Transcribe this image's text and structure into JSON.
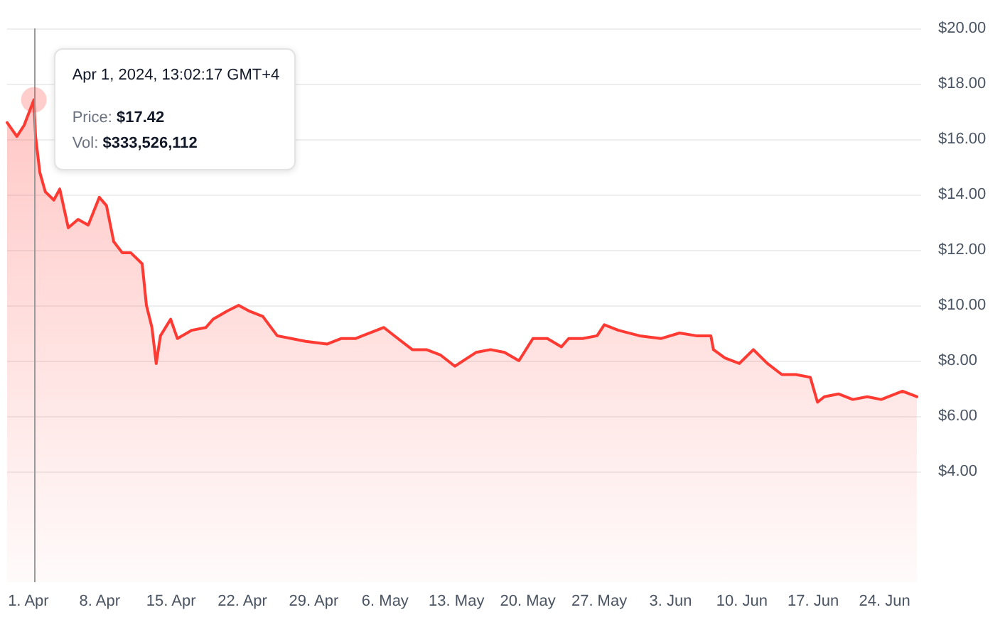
{
  "chart_data": {
    "type": "area",
    "x": [
      "2024-03-29T22:00",
      "2024-03-30T21:00",
      "2024-03-31T14:00",
      "2024-04-01T13:00",
      "2024-04-01T17:00",
      "2024-04-02T03:00",
      "2024-04-02T16:00",
      "2024-04-03T12:00",
      "2024-04-04T02:00",
      "2024-04-04T22:00",
      "2024-04-05T21:00",
      "2024-04-06T21:00",
      "2024-04-07T23:00",
      "2024-04-08T16:00",
      "2024-04-09T09:00",
      "2024-04-10T05:00",
      "2024-04-11T01:00",
      "2024-04-12T04:00",
      "2024-04-12T14:00",
      "2024-04-13T03:00",
      "2024-04-13T13:00",
      "2024-04-13T23:00",
      "2024-04-14T23:00",
      "2024-04-15T15:00",
      "2024-04-17T01:00",
      "2024-04-18T10:00",
      "2024-04-19T03:00",
      "2024-04-20T13:00",
      "2024-04-21T15:00",
      "2024-04-22T15:00",
      "2024-04-24T00:00",
      "2024-04-25T10:00",
      "2024-04-26T19:00",
      "2024-04-28T05:00",
      "2024-04-30T07:00",
      "2024-05-01T16:00",
      "2024-05-03T02:00",
      "2024-05-05T04:00",
      "2024-05-05T21:00",
      "2024-05-07T06:00",
      "2024-05-08T16:00",
      "2024-05-10T01:00",
      "2024-05-11T11:00",
      "2024-05-12T20:00",
      "2024-05-14T22:00",
      "2024-05-16T08:00",
      "2024-05-17T17:00",
      "2024-05-19T03:00",
      "2024-05-20T12:00",
      "2024-05-21T22:00",
      "2024-05-23T07:00",
      "2024-05-24T00:00",
      "2024-05-25T09:00",
      "2024-05-26T19:00",
      "2024-05-27T12:00",
      "2024-05-28T21:00",
      "2024-05-30T23:00",
      "2024-06-02T01:00",
      "2024-06-03T21:00",
      "2024-06-05T13:00",
      "2024-06-06T23:00",
      "2024-06-07T05:00",
      "2024-06-08T08:00",
      "2024-06-09T18:00",
      "2024-06-11T03:00",
      "2024-06-12T12:00",
      "2024-06-13T22:00",
      "2024-06-15T07:00",
      "2024-06-16T17:00",
      "2024-06-17T10:00",
      "2024-06-18T02:00",
      "2024-06-19T12:00",
      "2024-06-20T21:00",
      "2024-06-22T07:00",
      "2024-06-23T16:00",
      "2024-06-25T18:00",
      "2024-06-27T04:00"
    ],
    "series": [
      {
        "color": "#ff3a33",
        "values": [
          16.6,
          16.1,
          16.5,
          17.42,
          16.1,
          14.8,
          14.1,
          13.8,
          14.2,
          12.8,
          13.1,
          12.9,
          13.9,
          13.6,
          12.3,
          11.9,
          11.9,
          11.5,
          10.0,
          9.2,
          7.9,
          8.9,
          9.5,
          8.8,
          9.1,
          9.2,
          9.5,
          9.8,
          10.0,
          9.8,
          9.6,
          8.9,
          8.8,
          8.7,
          8.6,
          8.8,
          8.8,
          9.1,
          9.2,
          8.8,
          8.4,
          8.4,
          8.2,
          7.8,
          8.3,
          8.4,
          8.3,
          8.0,
          8.8,
          8.8,
          8.5,
          8.8,
          8.8,
          8.9,
          9.3,
          9.1,
          8.9,
          8.8,
          9.0,
          8.9,
          8.9,
          8.4,
          8.1,
          7.9,
          8.4,
          7.9,
          7.5,
          7.5,
          7.4,
          6.5,
          6.7,
          6.8,
          6.6,
          6.7,
          6.6,
          6.9,
          6.7
        ]
      }
    ],
    "xlim": [
      "2024-03-29T22:00",
      "2024-06-27T14:00"
    ],
    "xticks": [
      {
        "value": "2024-04-01",
        "label": "1. Apr"
      },
      {
        "value": "2024-04-08",
        "label": "8. Apr"
      },
      {
        "value": "2024-04-15",
        "label": "15. Apr"
      },
      {
        "value": "2024-04-22",
        "label": "22. Apr"
      },
      {
        "value": "2024-04-29",
        "label": "29. Apr"
      },
      {
        "value": "2024-05-06",
        "label": "6. May"
      },
      {
        "value": "2024-05-13",
        "label": "13. May"
      },
      {
        "value": "2024-05-20",
        "label": "20. May"
      },
      {
        "value": "2024-05-27",
        "label": "27. May"
      },
      {
        "value": "2024-06-03",
        "label": "3. Jun"
      },
      {
        "value": "2024-06-10",
        "label": "10. Jun"
      },
      {
        "value": "2024-06-17",
        "label": "17. Jun"
      },
      {
        "value": "2024-06-24",
        "label": "24. Jun"
      }
    ],
    "ylim": [
      0,
      20
    ],
    "yticks": [
      {
        "value": 4,
        "label": "$4.00"
      },
      {
        "value": 6,
        "label": "$6.00"
      },
      {
        "value": 8,
        "label": "$8.00"
      },
      {
        "value": 10,
        "label": "$10.00"
      },
      {
        "value": 12,
        "label": "$12.00"
      },
      {
        "value": 14,
        "label": "$14.00"
      },
      {
        "value": 16,
        "label": "$16.00"
      },
      {
        "value": 18,
        "label": "$18.00"
      },
      {
        "value": 20,
        "label": "$20.00"
      }
    ],
    "grid": "y",
    "marker": "none",
    "line_style": "solid",
    "ref_lines": [
      {
        "axis": "x",
        "value": "2024-04-01T13:00",
        "color": "#9a9a9a"
      }
    ],
    "annotations": [
      {
        "text": "Apr 1, 2024, 13:02:17 GMT+4",
        "x": "2024-04-01T13:00",
        "y": 17.42
      },
      "Price: $17.42",
      "Vol: $333,526,112"
    ]
  }
}
